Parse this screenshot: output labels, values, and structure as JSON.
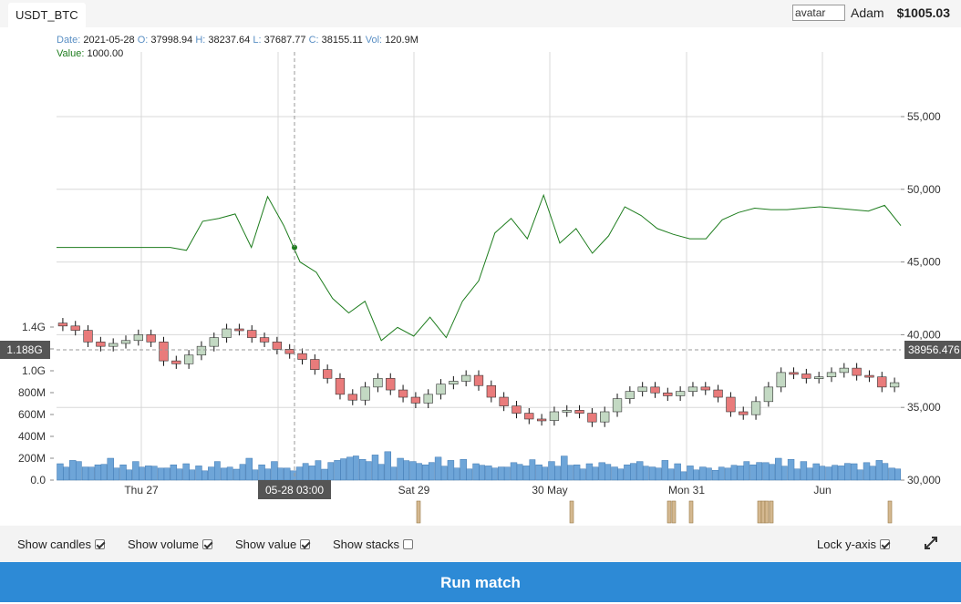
{
  "tab": {
    "label": "USDT_BTC"
  },
  "user": {
    "avatar_alt": "avatar",
    "name": "Adam",
    "balance": "$1005.03"
  },
  "legend": {
    "date_label": "Date:",
    "date_value": "2021-05-28",
    "open_label": "O:",
    "open_value": "37998.94",
    "high_label": "H:",
    "high_value": "38237.64",
    "low_label": "L:",
    "low_value": "37687.77",
    "close_label": "C:",
    "close_value": "38155.11",
    "vol_label": "Vol:",
    "vol_value": "120.9M",
    "value_label": "Value:",
    "value_value": "1000.00"
  },
  "crosshair": {
    "x_label": "05-28 03:00",
    "vol_label": "1.188G",
    "price_label": "38956.476"
  },
  "x_ticks": [
    "Thu 27",
    "Sat 29",
    "30 May",
    "Mon 31",
    "Jun"
  ],
  "price_ticks": [
    "55,000",
    "50,000",
    "45,000",
    "40,000",
    "35,000",
    "30,000"
  ],
  "volume_ticks": [
    "1.4G",
    "1.2G",
    "1.0G",
    "800M",
    "600M",
    "400M",
    "200M",
    "0.0"
  ],
  "controls": {
    "show_candles": "Show candles",
    "show_volume": "Show volume",
    "show_value": "Show value",
    "show_stacks": "Show stacks",
    "lock_y": "Lock y-axis"
  },
  "run_button": "Run match",
  "colors": {
    "up": "#c3d9c3",
    "down": "#e97b7b",
    "volume": "#6ea5d8",
    "value_line": "#1e7d1e",
    "run": "#2d8ad6",
    "marker": "#d4b890"
  },
  "chart_data": {
    "type": "line",
    "ylim": [
      30000,
      57000
    ],
    "series": [
      {
        "values": [
          46000,
          46000,
          46000,
          46000,
          46000,
          46000,
          46000,
          46000,
          45800,
          47800,
          48000,
          48300,
          46000,
          49500,
          47500,
          45000,
          44300,
          42500,
          41500,
          42300,
          39600,
          40500,
          39900,
          41200,
          39800,
          42300,
          43700,
          47000,
          48000,
          46600,
          49600,
          46300,
          47300,
          45600,
          46800,
          48800,
          48200,
          47300,
          46900,
          46600,
          46600,
          47900,
          48400,
          48700,
          48600,
          48600,
          48700,
          48800,
          48700,
          48600,
          48500,
          48900,
          47500
        ]
      }
    ],
    "candles_close": [
      40600,
      40300,
      39500,
      39200,
      39400,
      39600,
      40000,
      39500,
      38200,
      38000,
      38600,
      39200,
      39800,
      40400,
      40300,
      39800,
      39500,
      39000,
      38700,
      38300,
      37600,
      37000,
      35900,
      35500,
      36400,
      37000,
      36200,
      35700,
      35300,
      35900,
      36600,
      36800,
      37200,
      36500,
      35700,
      35100,
      34600,
      34200,
      34100,
      34700,
      34800,
      34600,
      34000,
      34700,
      35600,
      36100,
      36400,
      36000,
      35800,
      36100,
      36400,
      36200,
      35700,
      34700,
      34500,
      35400,
      36400,
      37400,
      37300,
      37000,
      37100,
      37400,
      37700,
      37200,
      37100,
      36400,
      36700
    ],
    "volume_m": [
      150,
      180,
      120,
      140,
      200,
      140,
      170,
      130,
      110,
      140,
      150,
      130,
      120,
      110,
      100,
      200,
      140,
      170,
      110,
      120,
      130,
      100,
      180,
      210,
      190,
      230,
      260,
      200,
      170,
      140,
      210,
      180,
      190,
      150,
      130,
      120,
      160,
      130,
      140,
      170,
      220,
      140,
      150,
      160,
      120,
      140,
      170,
      120,
      180,
      150,
      130,
      120,
      90,
      110,
      130,
      140,
      160,
      200,
      190,
      170,
      150,
      120,
      130,
      150,
      160,
      180,
      110
    ]
  }
}
